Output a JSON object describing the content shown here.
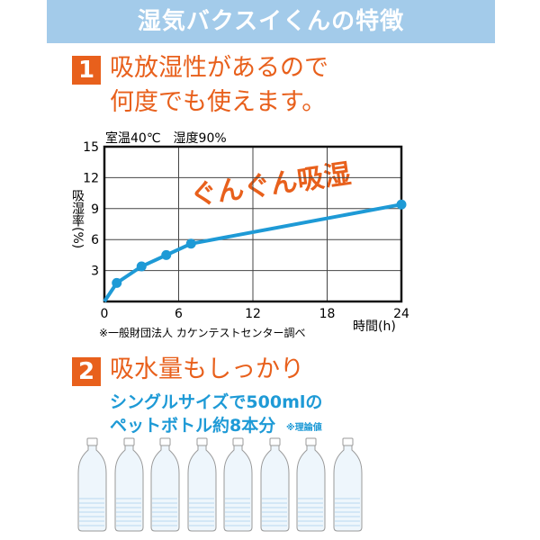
{
  "header": {
    "title": "湿気バクスイくんの特徴"
  },
  "feature1": {
    "number": "1",
    "line1": "吸放湿性があるので",
    "line2": "何度でも使えます。"
  },
  "chart_data": {
    "type": "line",
    "condition": "室温40℃　湿度90%",
    "xlabel": "時間(h)",
    "ylabel": "吸湿率(%)",
    "x_ticks": [
      "0",
      "6",
      "12",
      "18",
      "24"
    ],
    "y_ticks": [
      "3",
      "6",
      "9",
      "12",
      "15"
    ],
    "xlim": [
      0,
      24
    ],
    "ylim": [
      0,
      15
    ],
    "grid": true,
    "x": [
      0,
      1,
      3,
      5,
      7,
      24
    ],
    "values": [
      0,
      1.8,
      3.4,
      4.5,
      5.6,
      9.4
    ],
    "markers": [
      false,
      true,
      true,
      true,
      true,
      true
    ],
    "annotation": "ぐんぐん吸湿",
    "source": "※一般財団法人 カケンテストセンター調べ",
    "colors": {
      "line": "#1e9ad6",
      "annotation": "#e8601c"
    }
  },
  "feature2": {
    "number": "2",
    "title": "吸水量もしっかり",
    "line1": "シングルサイズで500mlの",
    "line2": "ペットボトル約8本分",
    "note": "※理論値",
    "bottle_count": 8
  }
}
